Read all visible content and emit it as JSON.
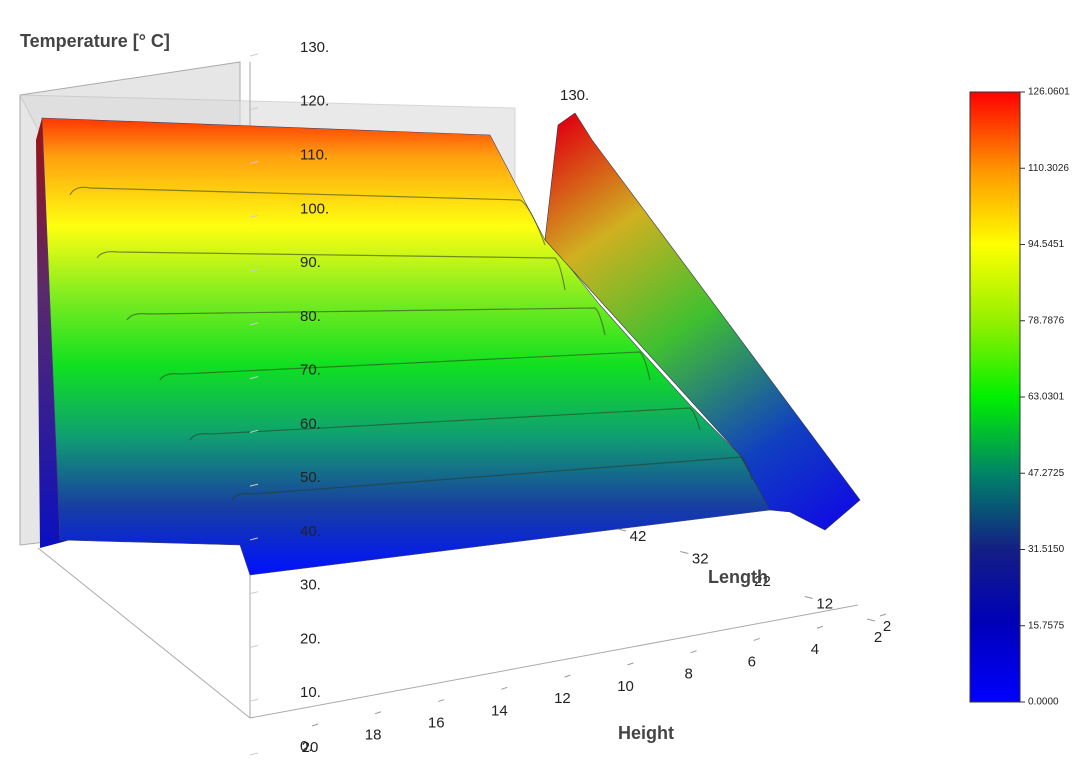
{
  "chart_data": {
    "type": "surface",
    "zlabel": "Temperature [° C]",
    "xlabel": "Height",
    "ylabel": "Length",
    "annotation": "130.",
    "zlim": [
      0,
      130
    ],
    "zticks": [
      {
        "value": 130,
        "label": "130."
      },
      {
        "value": 120,
        "label": "120."
      },
      {
        "value": 110,
        "label": "110."
      },
      {
        "value": 100,
        "label": "100."
      },
      {
        "value": 90,
        "label": "90."
      },
      {
        "value": 80,
        "label": "80."
      },
      {
        "value": 70,
        "label": "70."
      },
      {
        "value": 60,
        "label": "60."
      },
      {
        "value": 50,
        "label": "50."
      },
      {
        "value": 40,
        "label": "40."
      },
      {
        "value": 30,
        "label": "30."
      },
      {
        "value": 20,
        "label": "20."
      },
      {
        "value": 10,
        "label": "10."
      },
      {
        "value": 0,
        "label": "0."
      }
    ],
    "xlim": [
      20,
      2
    ],
    "xticks": [
      20,
      18,
      16,
      14,
      12,
      10,
      8,
      6,
      4,
      2
    ],
    "ylim": [
      2,
      42
    ],
    "yticks": [
      2,
      12,
      22,
      32,
      42
    ],
    "colorbar": {
      "lim": [
        0,
        126.0601
      ],
      "ticks": [
        {
          "value": 0,
          "label": "0.0000"
        },
        15.7575,
        {
          "value": 31.515,
          "label": "31.5150"
        },
        47.2725,
        63.0301,
        78.7876,
        94.5451,
        110.3026,
        126.0601
      ]
    }
  }
}
